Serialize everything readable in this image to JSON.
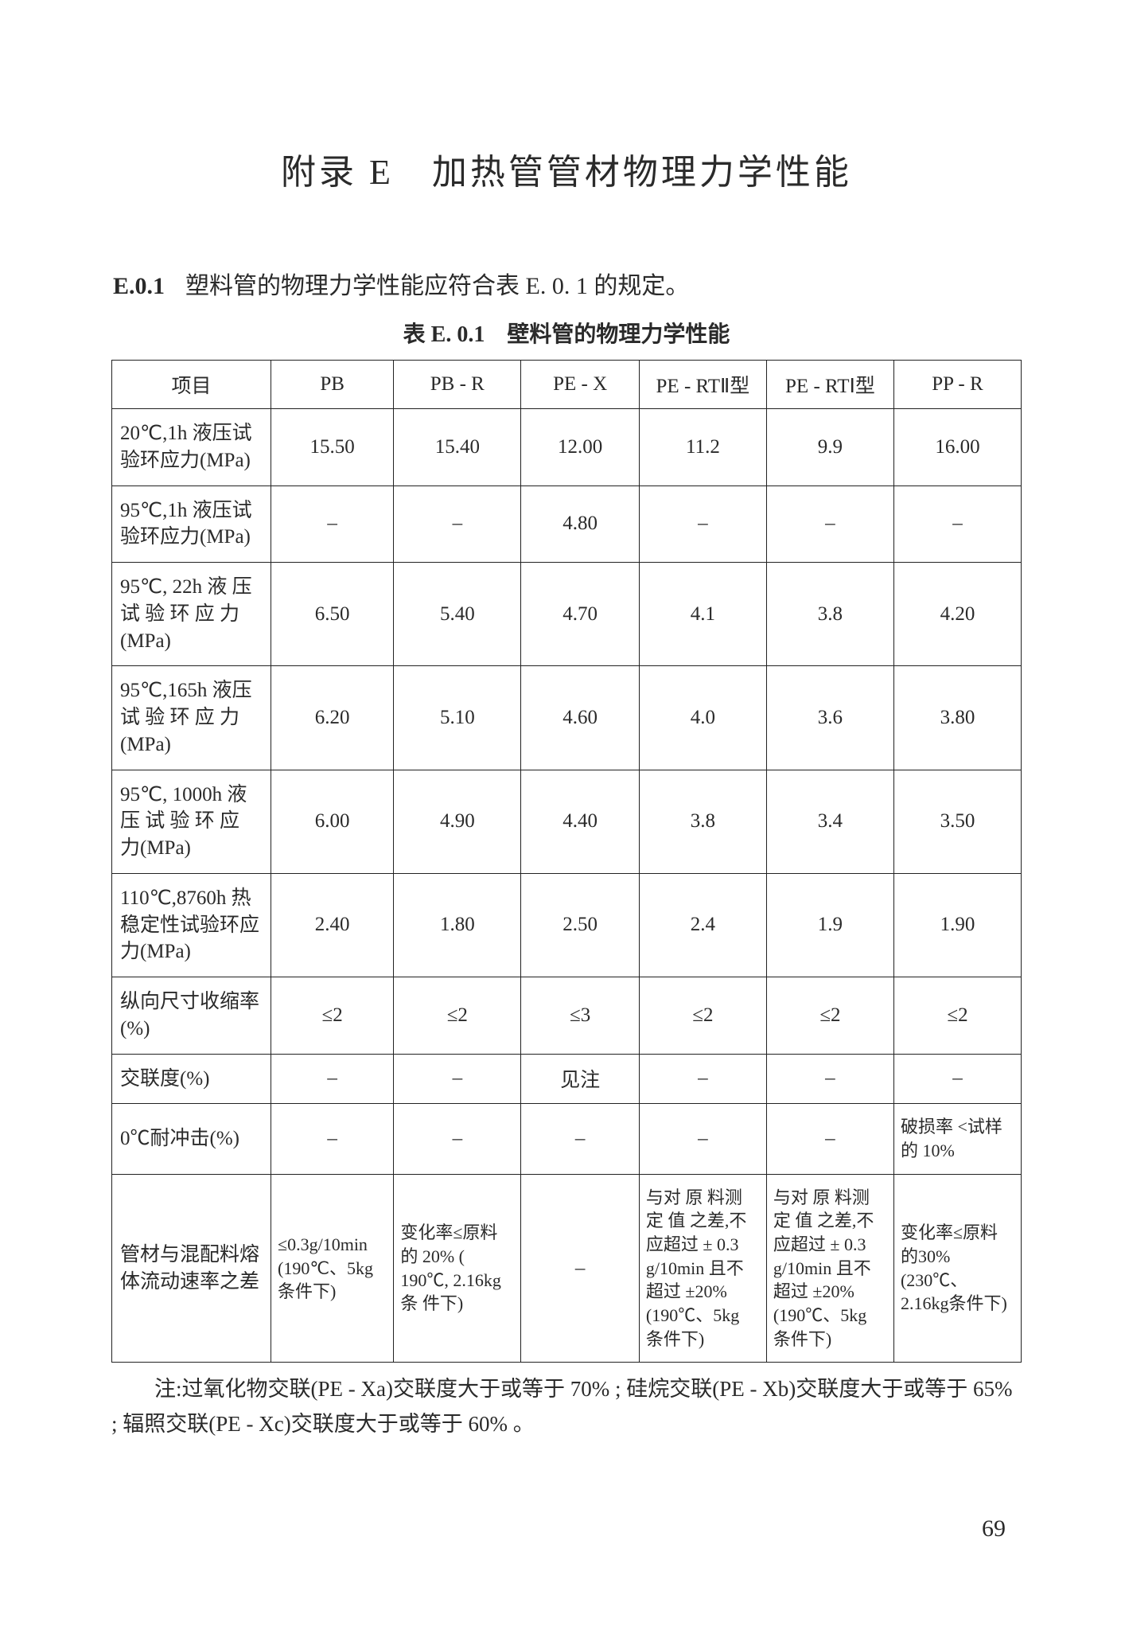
{
  "title": "附录 E　加热管管材物理力学性能",
  "intro": {
    "label": "E.0.1",
    "text": "塑料管的物理力学性能应符合表 E. 0. 1 的规定。"
  },
  "table": {
    "caption": "表 E. 0.1　壁料管的物理力学性能",
    "headers": [
      "项目",
      "PB",
      "PB - R",
      "PE - X",
      "PE - RTⅡ型",
      "PE - RTⅠ型",
      "PP - R"
    ],
    "rows": [
      {
        "param": "20℃,1h 液压试验环应力(MPa)",
        "vals": [
          "15.50",
          "15.40",
          "12.00",
          "11.2",
          "9.9",
          "16.00"
        ]
      },
      {
        "param": "95℃,1h 液压试验环应力(MPa)",
        "vals": [
          "–",
          "–",
          "4.80",
          "–",
          "–",
          "–"
        ]
      },
      {
        "param": "95℃, 22h 液 压试 验 环 应 力(MPa)",
        "vals": [
          "6.50",
          "5.40",
          "4.70",
          "4.1",
          "3.8",
          "4.20"
        ]
      },
      {
        "param": "95℃,165h 液压试 验 环 应 力(MPa)",
        "vals": [
          "6.20",
          "5.10",
          "4.60",
          "4.0",
          "3.6",
          "3.80"
        ]
      },
      {
        "param": "95℃, 1000h 液压 试 验 环 应 力(MPa)",
        "vals": [
          "6.00",
          "4.90",
          "4.40",
          "3.8",
          "3.4",
          "3.50"
        ]
      },
      {
        "param": "110℃,8760h 热稳定性试验环应力(MPa)",
        "vals": [
          "2.40",
          "1.80",
          "2.50",
          "2.4",
          "1.9",
          "1.90"
        ]
      },
      {
        "param": "纵向尺寸收缩率(%)",
        "vals": [
          "≤2",
          "≤2",
          "≤3",
          "≤2",
          "≤2",
          "≤2"
        ]
      },
      {
        "param": "交联度(%)",
        "vals": [
          "–",
          "–",
          "见注",
          "–",
          "–",
          "–"
        ]
      },
      {
        "param": "0℃耐冲击(%)",
        "vals": [
          "–",
          "–",
          "–",
          "–",
          "–",
          "破损率 <试样的 10%"
        ],
        "longcols": [
          5
        ]
      },
      {
        "param": "管材与混配料熔体流动速率之差",
        "vals": [
          "≤0.3g/10min (190℃、5kg 条件下)",
          "变化率≤原料 的 20% ( 190℃, 2.16kg 条 件下)",
          "–",
          "与对 原 料测 定 值 之差,不应超过 ± 0.3 g/10min 且不超过 ±20% (190℃、5kg 条件下)",
          "与对 原 料测 定 值 之差,不应超过 ± 0.3 g/10min 且不超过 ±20% (190℃、5kg 条件下)",
          "变化率≤原料的30%(230℃、2.16kg条件下)"
        ],
        "longcols": [
          0,
          1,
          3,
          4,
          5
        ]
      }
    ]
  },
  "footnote": "注:过氧化物交联(PE - Xa)交联度大于或等于 70% ; 硅烷交联(PE - Xb)交联度大于或等于 65% ; 辐照交联(PE - Xc)交联度大于或等于 60% 。",
  "page_number": "69"
}
